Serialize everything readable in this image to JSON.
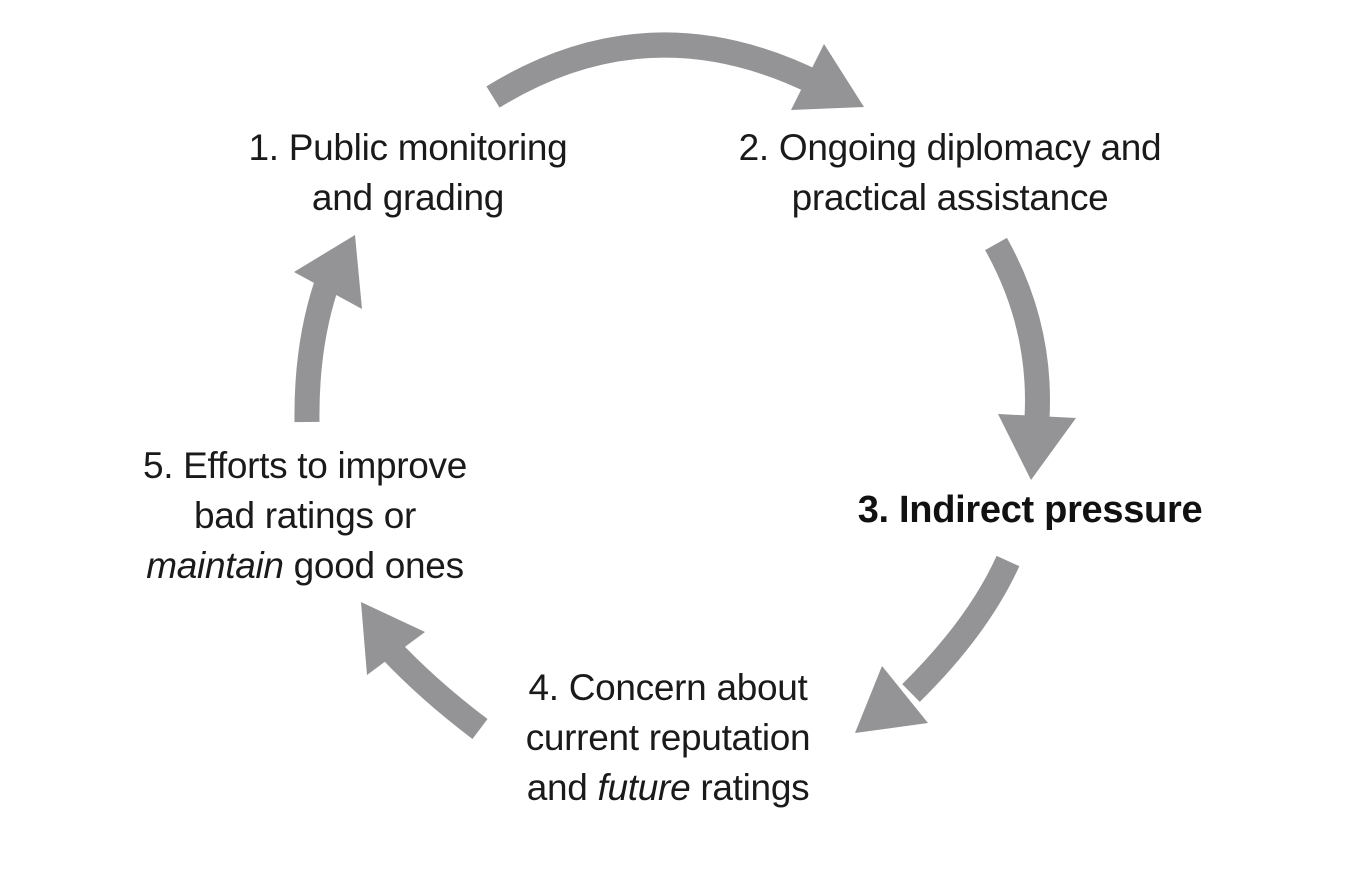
{
  "colors": {
    "arrow": "#949497",
    "text": "#1a1a1a",
    "background": "#ffffff"
  },
  "diagram": {
    "steps": [
      {
        "line1": "1. Public monitoring",
        "line2": "and grading"
      },
      {
        "line1": "2. Ongoing diplomacy and",
        "line2": "practical assistance"
      },
      {
        "line1": "3. Indirect pressure"
      },
      {
        "line1": "4. Concern about",
        "line2": "current reputation",
        "line3_before": "and ",
        "line3_em": "future",
        "line3_after": " ratings"
      },
      {
        "line1": "5. Efforts to improve",
        "line2": "bad ratings or",
        "line3_em": "maintain",
        "line3_after": " good ones"
      }
    ]
  }
}
